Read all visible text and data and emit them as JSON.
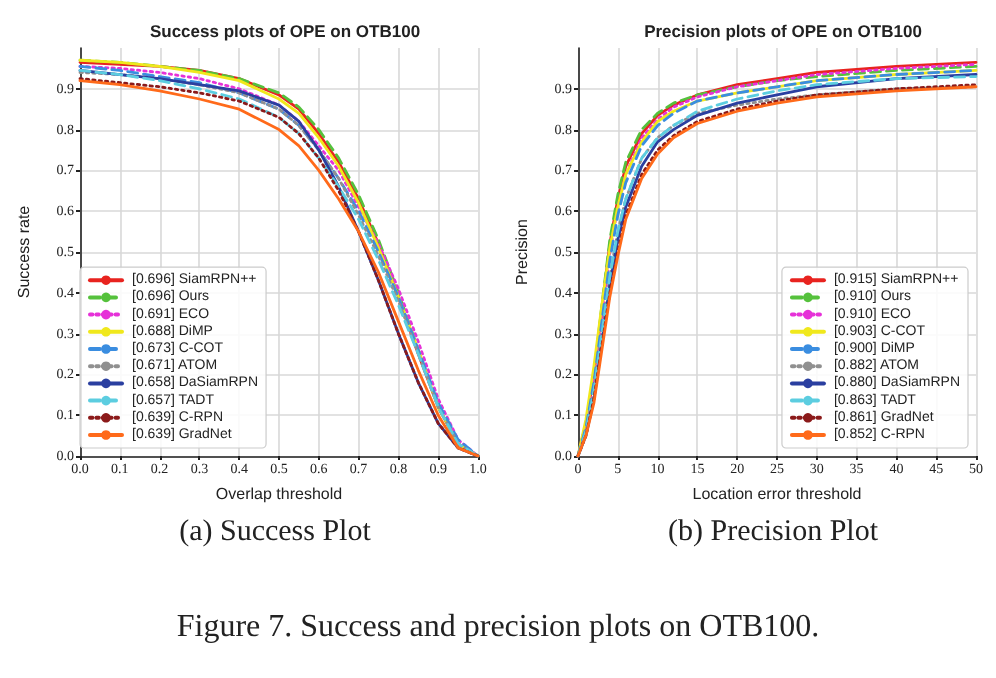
{
  "chart_data": [
    {
      "type": "line",
      "title": "Success plots of OPE on OTB100",
      "xlabel": "Overlap threshold",
      "ylabel": "Success rate",
      "annotations": [
        "(a) Success Plot"
      ],
      "x": [
        0,
        0.1,
        0.2,
        0.3,
        0.4,
        0.5,
        0.55,
        0.6,
        0.65,
        0.7,
        0.75,
        0.8,
        0.85,
        0.9,
        0.95,
        1.0
      ],
      "xlim": [
        0,
        1
      ],
      "xticks": [
        {
          "value": 0,
          "label": "0.0"
        },
        0.1,
        0.2,
        0.3,
        0.4,
        0.5,
        0.6,
        0.7,
        0.8,
        0.9,
        {
          "value": 1,
          "label": "1.0"
        }
      ],
      "ylim": [
        0,
        1
      ],
      "yticks": [
        {
          "value": 0,
          "label": "0.0"
        },
        0.1,
        0.2,
        0.3,
        0.4,
        0.5,
        0.6,
        0.7,
        0.8,
        0.9
      ],
      "grid": true,
      "legend": "bottom left",
      "marker": "none",
      "series": [
        {
          "name": "[0.696] SiamRPN++",
          "color": "#e8231f",
          "line_style": "solid",
          "values": [
            0.965,
            0.96,
            0.955,
            0.945,
            0.925,
            0.885,
            0.85,
            0.79,
            0.72,
            0.63,
            0.52,
            0.39,
            0.25,
            0.12,
            0.03,
            0
          ]
        },
        {
          "name": "[0.696] Ours",
          "color": "#55c13c",
          "line_style": "dashed",
          "values": [
            0.97,
            0.965,
            0.955,
            0.945,
            0.925,
            0.89,
            0.855,
            0.8,
            0.73,
            0.64,
            0.53,
            0.4,
            0.26,
            0.12,
            0.03,
            0
          ]
        },
        {
          "name": "[0.691] ECO",
          "color": "#e632d8",
          "line_style": "dotted",
          "values": [
            0.955,
            0.95,
            0.94,
            0.925,
            0.9,
            0.86,
            0.82,
            0.76,
            0.7,
            0.61,
            0.52,
            0.41,
            0.28,
            0.14,
            0.04,
            0
          ]
        },
        {
          "name": "[0.688] DiMP",
          "color": "#f0e81c",
          "line_style": "solid",
          "values": [
            0.97,
            0.965,
            0.955,
            0.94,
            0.92,
            0.875,
            0.84,
            0.78,
            0.71,
            0.62,
            0.51,
            0.39,
            0.26,
            0.12,
            0.03,
            0
          ]
        },
        {
          "name": "[0.673] C-COT",
          "color": "#3a8de0",
          "line_style": "dashed",
          "values": [
            0.955,
            0.945,
            0.93,
            0.915,
            0.89,
            0.85,
            0.81,
            0.75,
            0.68,
            0.6,
            0.5,
            0.39,
            0.26,
            0.13,
            0.04,
            0
          ]
        },
        {
          "name": "[0.671] ATOM",
          "color": "#909090",
          "line_style": "dotted",
          "values": [
            0.94,
            0.935,
            0.925,
            0.91,
            0.89,
            0.85,
            0.81,
            0.75,
            0.68,
            0.59,
            0.49,
            0.38,
            0.25,
            0.12,
            0.03,
            0
          ]
        },
        {
          "name": "[0.658] DaSiamRPN",
          "color": "#2a3fa0",
          "line_style": "solid",
          "values": [
            0.945,
            0.935,
            0.925,
            0.91,
            0.895,
            0.86,
            0.82,
            0.75,
            0.66,
            0.55,
            0.43,
            0.3,
            0.18,
            0.08,
            0.02,
            0
          ]
        },
        {
          "name": "[0.657] TADT",
          "color": "#5ccde0",
          "line_style": "dashed",
          "values": [
            0.945,
            0.935,
            0.92,
            0.9,
            0.875,
            0.83,
            0.79,
            0.73,
            0.66,
            0.58,
            0.48,
            0.37,
            0.25,
            0.12,
            0.03,
            0
          ]
        },
        {
          "name": "[0.639] C-RPN",
          "color": "#8b1a1a",
          "line_style": "dotted",
          "values": [
            0.925,
            0.915,
            0.905,
            0.89,
            0.87,
            0.83,
            0.79,
            0.73,
            0.65,
            0.55,
            0.43,
            0.3,
            0.18,
            0.08,
            0.02,
            0
          ]
        },
        {
          "name": "[0.639] GradNet",
          "color": "#ff6a1a",
          "line_style": "solid",
          "values": [
            0.92,
            0.91,
            0.895,
            0.875,
            0.85,
            0.8,
            0.76,
            0.7,
            0.63,
            0.55,
            0.45,
            0.33,
            0.21,
            0.1,
            0.02,
            0
          ]
        }
      ]
    },
    {
      "type": "line",
      "title": "Precision plots of OPE on OTB100",
      "xlabel": "Location error threshold",
      "ylabel": "Precision",
      "annotations": [
        "(b) Precision Plot",
        "Figure 7. Success and precision plots on OTB100."
      ],
      "x": [
        0,
        1,
        2,
        3,
        4,
        5,
        6,
        8,
        10,
        12,
        15,
        20,
        25,
        30,
        40,
        50
      ],
      "xlim": [
        0,
        50
      ],
      "xticks": [
        0,
        5,
        10,
        15,
        20,
        25,
        30,
        35,
        40,
        45,
        50
      ],
      "ylim": [
        0,
        1
      ],
      "yticks": [
        {
          "value": 0,
          "label": "0.0"
        },
        0.1,
        0.2,
        0.3,
        0.4,
        0.5,
        0.6,
        0.7,
        0.8,
        0.9
      ],
      "grid": true,
      "legend": "bottom right",
      "marker": "none",
      "series": [
        {
          "name": "[0.915] SiamRPN++",
          "color": "#e8231f",
          "line_style": "solid",
          "values": [
            0,
            0.08,
            0.2,
            0.36,
            0.52,
            0.63,
            0.71,
            0.79,
            0.835,
            0.86,
            0.885,
            0.91,
            0.925,
            0.94,
            0.955,
            0.965
          ]
        },
        {
          "name": "[0.910] Ours",
          "color": "#55c13c",
          "line_style": "dashed",
          "values": [
            0,
            0.08,
            0.2,
            0.37,
            0.53,
            0.64,
            0.72,
            0.8,
            0.84,
            0.865,
            0.885,
            0.905,
            0.92,
            0.93,
            0.945,
            0.955
          ]
        },
        {
          "name": "[0.910] ECO",
          "color": "#e632d8",
          "line_style": "dotted",
          "values": [
            0,
            0.07,
            0.18,
            0.34,
            0.5,
            0.61,
            0.69,
            0.78,
            0.825,
            0.855,
            0.88,
            0.905,
            0.92,
            0.935,
            0.95,
            0.96
          ]
        },
        {
          "name": "[0.903] C-COT",
          "color": "#f0e81c",
          "line_style": "solid",
          "values": [
            0,
            0.09,
            0.22,
            0.37,
            0.51,
            0.61,
            0.69,
            0.77,
            0.82,
            0.845,
            0.87,
            0.89,
            0.905,
            0.92,
            0.935,
            0.945
          ]
        },
        {
          "name": "[0.900] DiMP",
          "color": "#3a8de0",
          "line_style": "dashed",
          "values": [
            0,
            0.07,
            0.18,
            0.33,
            0.48,
            0.59,
            0.67,
            0.76,
            0.81,
            0.84,
            0.87,
            0.89,
            0.905,
            0.92,
            0.935,
            0.945
          ]
        },
        {
          "name": "[0.882] ATOM",
          "color": "#909090",
          "line_style": "dotted",
          "values": [
            0,
            0.06,
            0.16,
            0.3,
            0.44,
            0.55,
            0.63,
            0.73,
            0.78,
            0.81,
            0.84,
            0.86,
            0.875,
            0.885,
            0.9,
            0.905
          ]
        },
        {
          "name": "[0.880] DaSiamRPN",
          "color": "#2a3fa0",
          "line_style": "solid",
          "values": [
            0,
            0.05,
            0.14,
            0.28,
            0.42,
            0.53,
            0.61,
            0.71,
            0.77,
            0.8,
            0.835,
            0.865,
            0.885,
            0.905,
            0.925,
            0.935
          ]
        },
        {
          "name": "[0.863] TADT",
          "color": "#5ccde0",
          "line_style": "dashed",
          "values": [
            0,
            0.06,
            0.16,
            0.3,
            0.44,
            0.55,
            0.63,
            0.73,
            0.78,
            0.81,
            0.845,
            0.875,
            0.895,
            0.91,
            0.925,
            0.93
          ]
        },
        {
          "name": "[0.861] GradNet",
          "color": "#8b1a1a",
          "line_style": "dotted",
          "values": [
            0,
            0.05,
            0.14,
            0.27,
            0.4,
            0.5,
            0.59,
            0.69,
            0.75,
            0.785,
            0.82,
            0.85,
            0.87,
            0.885,
            0.9,
            0.91
          ]
        },
        {
          "name": "[0.852] C-RPN",
          "color": "#ff6a1a",
          "line_style": "solid",
          "values": [
            0,
            0.05,
            0.13,
            0.26,
            0.39,
            0.49,
            0.58,
            0.68,
            0.74,
            0.78,
            0.815,
            0.845,
            0.865,
            0.88,
            0.895,
            0.905
          ]
        }
      ]
    }
  ]
}
